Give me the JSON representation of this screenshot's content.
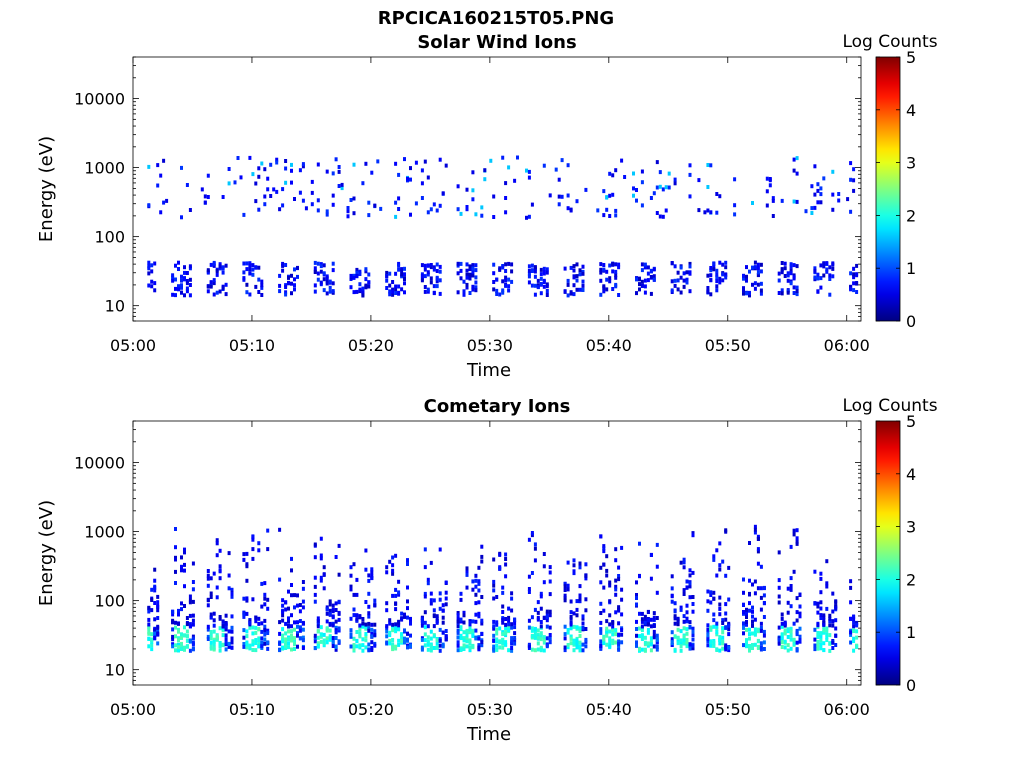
{
  "figure": {
    "title": "RPCICA160215T05.PNG"
  },
  "chart_data": [
    {
      "type": "heatmap",
      "title": "Solar Wind Ions",
      "xlabel": "Time",
      "ylabel": "Energy (eV)",
      "x_ticks": [
        "05:00",
        "05:10",
        "05:20",
        "05:30",
        "05:40",
        "05:50",
        "06:00"
      ],
      "y_ticks": [
        "10",
        "100",
        "1000",
        "10000"
      ],
      "y_scale": "log",
      "ylim": [
        6,
        40000
      ],
      "xlim_minutes": [
        0,
        61.2
      ],
      "colorbar": {
        "label": "Log Counts",
        "ticks": [
          "0",
          "1",
          "2",
          "3",
          "4",
          "5"
        ],
        "range": [
          0,
          5
        ],
        "colormap": "jet"
      },
      "features": {
        "low_band_energy_range_eV": [
          15,
          45
        ],
        "low_band_level": 0.3,
        "high_band_energy_range_eV": [
          200,
          1500
        ],
        "high_band_level": 0.4,
        "peak_level": 1.6
      }
    },
    {
      "type": "heatmap",
      "title": "Cometary Ions",
      "xlabel": "Time",
      "ylabel": "Energy (eV)",
      "x_ticks": [
        "05:00",
        "05:10",
        "05:20",
        "05:30",
        "05:40",
        "05:50",
        "06:00"
      ],
      "y_ticks": [
        "10",
        "100",
        "1000",
        "10000"
      ],
      "y_scale": "log",
      "ylim": [
        6,
        40000
      ],
      "xlim_minutes": [
        0,
        61.2
      ],
      "colorbar": {
        "label": "Log Counts",
        "ticks": [
          "0",
          "1",
          "2",
          "3",
          "4",
          "5"
        ],
        "range": [
          0,
          5
        ],
        "colormap": "jet"
      },
      "features": {
        "burst_period_minutes": 3.0,
        "core_energy_range_eV": [
          20,
          45
        ],
        "core_level": 1.8,
        "tail_max_energy_eV": 1500,
        "tail_level": 0.3
      }
    }
  ]
}
